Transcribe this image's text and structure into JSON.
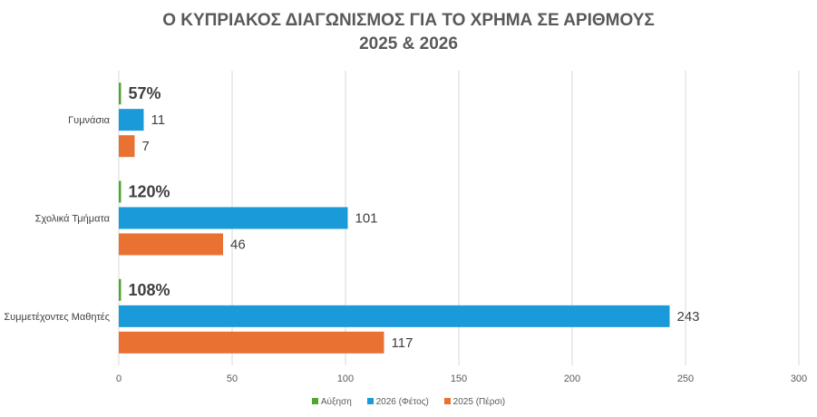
{
  "chart_data": {
    "type": "bar",
    "orientation": "horizontal",
    "title": "Ο ΚΥΠΡΙΑΚΟΣ ΔΙΑΓΩΝΙΣΜΟΣ ΓΙΑ ΤΟ ΧΡΗΜΑ ΣΕ ΑΡΙΘΜΟΥΣ",
    "subtitle": "2025 & 2026",
    "categories": [
      "Γυμνάσια",
      "Σχολικά Τμήματα",
      "Συμμετέχοντες Μαθητές"
    ],
    "series": [
      {
        "name": "Αύξηση",
        "color": "#4ea72e",
        "values": [
          0.57,
          1.2,
          1.08
        ],
        "labels": [
          "57%",
          "120%",
          "108%"
        ]
      },
      {
        "name": "2026 (Φέτος)",
        "color": "#1a9ad8",
        "values": [
          11,
          101,
          243
        ],
        "labels": [
          "11",
          "101",
          "243"
        ]
      },
      {
        "name": "2025 (Πέρσι)",
        "color": "#e97132",
        "values": [
          7,
          46,
          117
        ],
        "labels": [
          "7",
          "46",
          "117"
        ]
      }
    ],
    "xlim": [
      0,
      300
    ],
    "xticks": [
      "0",
      "50",
      "100",
      "150",
      "200",
      "250",
      "300"
    ],
    "grid": true,
    "legend_position": "bottom"
  }
}
